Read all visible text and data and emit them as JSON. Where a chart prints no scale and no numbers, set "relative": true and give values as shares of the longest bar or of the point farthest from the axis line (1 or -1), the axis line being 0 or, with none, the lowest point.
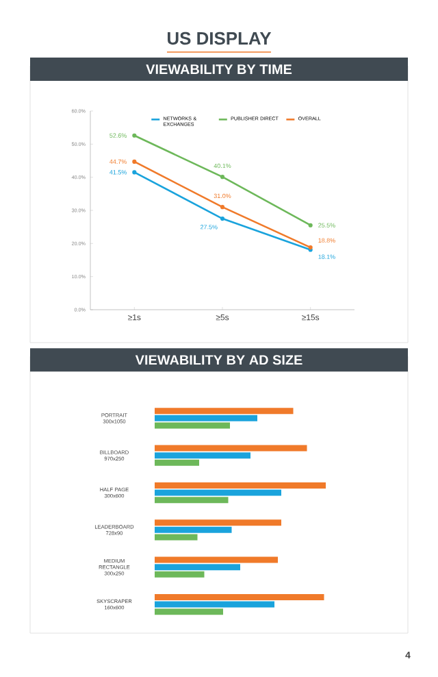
{
  "chart_data": [
    {
      "type": "line",
      "title": "VIEWABILITY BY TIME",
      "annotations": [
        "US DISPLAY"
      ],
      "categories": [
        "≥1s",
        "≥5s",
        "≥15s"
      ],
      "series": [
        {
          "name": "NETWORKS & EXCHANGES",
          "color": "#1aa3dc",
          "values": [
            41.5,
            27.5,
            18.1
          ],
          "value_labels": [
            "41.5%",
            "27.5%",
            "18.1%"
          ]
        },
        {
          "name": "PUBLISHER DIRECT",
          "color": "#6db85a",
          "values": [
            52.6,
            40.1,
            25.5
          ],
          "value_labels": [
            "52.6%",
            "40.1%",
            "25.5%"
          ]
        },
        {
          "name": "OVERALL",
          "color": "#f07a2a",
          "values": [
            44.7,
            31.0,
            18.8
          ],
          "value_labels": [
            "44.7%",
            "31.0%",
            "18.8%"
          ]
        }
      ],
      "ylim": [
        0,
        60
      ],
      "yticks": [
        {
          "value": 0,
          "label": "0.0%"
        },
        {
          "value": 10,
          "label": "10.0%"
        },
        {
          "value": 20,
          "label": "20.0%"
        },
        {
          "value": 30,
          "label": "30.0%"
        },
        {
          "value": 40,
          "label": "40.0%"
        },
        {
          "value": 50,
          "label": "50.0%"
        },
        {
          "value": 60,
          "label": "60.0%"
        }
      ],
      "legend": "top right",
      "marker": "circle"
    },
    {
      "type": "bar",
      "title": "VIEWABILITY BY AD SIZE",
      "annotations": [
        "4"
      ],
      "orientation": "horizontal",
      "relative": true,
      "categories": [
        "PORTRAIT 300x1050",
        "BILLBOARD 970x250",
        "HALF PAGE 300x600",
        "LEADERBOARD 728x90",
        "MEDIUM RECTANGLE 300x250",
        "SKYSCRAPER 160x600"
      ],
      "series": [
        {
          "color": "#f07a2a",
          "values": [
            0.81,
            0.89,
            1.0,
            0.74,
            0.72,
            0.99
          ]
        },
        {
          "color": "#1aa3dc",
          "values": [
            0.6,
            0.56,
            0.74,
            0.45,
            0.5,
            0.7
          ]
        },
        {
          "color": "#6db85a",
          "values": [
            0.44,
            0.26,
            0.43,
            0.25,
            0.29,
            0.4
          ]
        }
      ]
    }
  ]
}
